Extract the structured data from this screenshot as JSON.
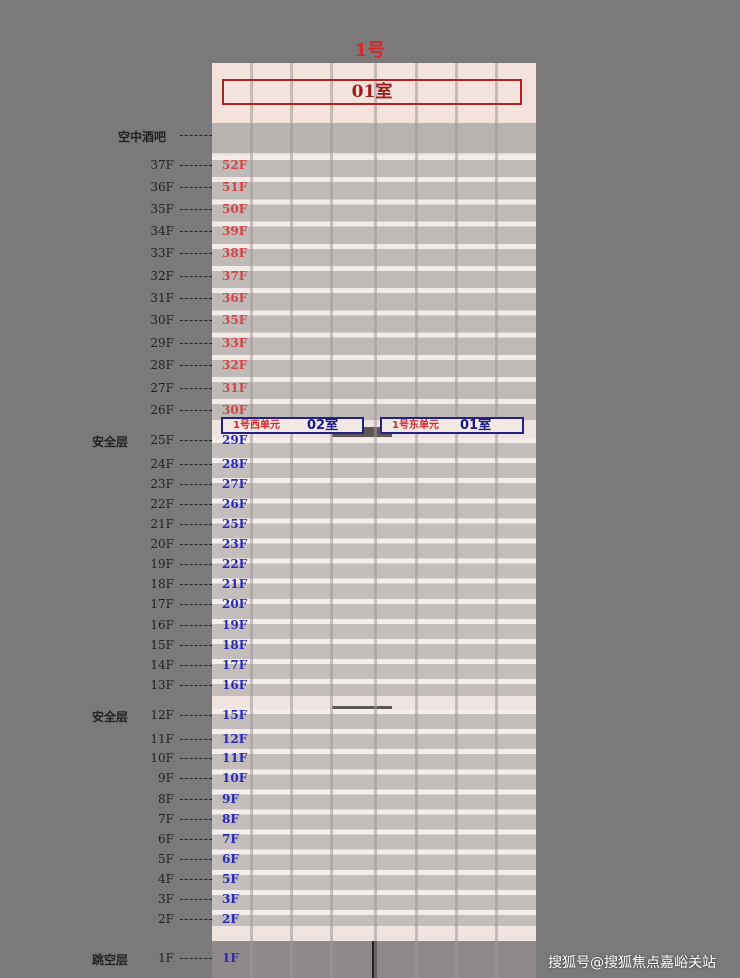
{
  "title": "1号",
  "top_room": "01室",
  "skybar_label": "空中酒吧",
  "units": [
    {
      "unit": "1号西单元",
      "room": "02室"
    },
    {
      "unit": "1号东单元",
      "room": "01室"
    }
  ],
  "colors": {
    "upper_unit_floor": "#d04545",
    "lower_unit_floor": "#2a2ab0",
    "title": "#d42a2a"
  },
  "floors": [
    {
      "floor": "37F",
      "unit_floor": "52F",
      "note": "",
      "zone": "upper"
    },
    {
      "floor": "36F",
      "unit_floor": "51F",
      "note": "",
      "zone": "upper"
    },
    {
      "floor": "35F",
      "unit_floor": "50F",
      "note": "",
      "zone": "upper"
    },
    {
      "floor": "34F",
      "unit_floor": "39F",
      "note": "",
      "zone": "upper"
    },
    {
      "floor": "33F",
      "unit_floor": "38F",
      "note": "",
      "zone": "upper"
    },
    {
      "floor": "32F",
      "unit_floor": "37F",
      "note": "",
      "zone": "upper"
    },
    {
      "floor": "31F",
      "unit_floor": "36F",
      "note": "",
      "zone": "upper"
    },
    {
      "floor": "30F",
      "unit_floor": "35F",
      "note": "",
      "zone": "upper"
    },
    {
      "floor": "29F",
      "unit_floor": "33F",
      "note": "",
      "zone": "upper"
    },
    {
      "floor": "28F",
      "unit_floor": "32F",
      "note": "",
      "zone": "upper"
    },
    {
      "floor": "27F",
      "unit_floor": "31F",
      "note": "",
      "zone": "upper"
    },
    {
      "floor": "26F",
      "unit_floor": "30F",
      "note": "",
      "zone": "upper"
    },
    {
      "floor": "25F",
      "unit_floor": "29F",
      "note": "安全层",
      "zone": "lower"
    },
    {
      "floor": "24F",
      "unit_floor": "28F",
      "note": "",
      "zone": "lower"
    },
    {
      "floor": "23F",
      "unit_floor": "27F",
      "note": "",
      "zone": "lower"
    },
    {
      "floor": "22F",
      "unit_floor": "26F",
      "note": "",
      "zone": "lower"
    },
    {
      "floor": "21F",
      "unit_floor": "25F",
      "note": "",
      "zone": "lower"
    },
    {
      "floor": "20F",
      "unit_floor": "23F",
      "note": "",
      "zone": "lower"
    },
    {
      "floor": "19F",
      "unit_floor": "22F",
      "note": "",
      "zone": "lower"
    },
    {
      "floor": "18F",
      "unit_floor": "21F",
      "note": "",
      "zone": "lower"
    },
    {
      "floor": "17F",
      "unit_floor": "20F",
      "note": "",
      "zone": "lower"
    },
    {
      "floor": "16F",
      "unit_floor": "19F",
      "note": "",
      "zone": "lower"
    },
    {
      "floor": "15F",
      "unit_floor": "18F",
      "note": "",
      "zone": "lower"
    },
    {
      "floor": "14F",
      "unit_floor": "17F",
      "note": "",
      "zone": "lower"
    },
    {
      "floor": "13F",
      "unit_floor": "16F",
      "note": "",
      "zone": "lower"
    },
    {
      "floor": "12F",
      "unit_floor": "15F",
      "note": "安全层",
      "zone": "lower"
    },
    {
      "floor": "11F",
      "unit_floor": "12F",
      "note": "",
      "zone": "lower"
    },
    {
      "floor": "10F",
      "unit_floor": "11F",
      "note": "",
      "zone": "lower"
    },
    {
      "floor": "9F",
      "unit_floor": "10F",
      "note": "",
      "zone": "lower"
    },
    {
      "floor": "8F",
      "unit_floor": "9F",
      "note": "",
      "zone": "lower"
    },
    {
      "floor": "7F",
      "unit_floor": "8F",
      "note": "",
      "zone": "lower"
    },
    {
      "floor": "6F",
      "unit_floor": "7F",
      "note": "",
      "zone": "lower"
    },
    {
      "floor": "5F",
      "unit_floor": "6F",
      "note": "",
      "zone": "lower"
    },
    {
      "floor": "4F",
      "unit_floor": "5F",
      "note": "",
      "zone": "lower"
    },
    {
      "floor": "3F",
      "unit_floor": "3F",
      "note": "",
      "zone": "lower"
    },
    {
      "floor": "2F",
      "unit_floor": "2F",
      "note": "",
      "zone": "lower"
    },
    {
      "floor": "1F",
      "unit_floor": "1F",
      "note": "跳空层",
      "zone": "lower"
    }
  ],
  "watermark": "搜狐号@搜狐焦点嘉峪关站"
}
